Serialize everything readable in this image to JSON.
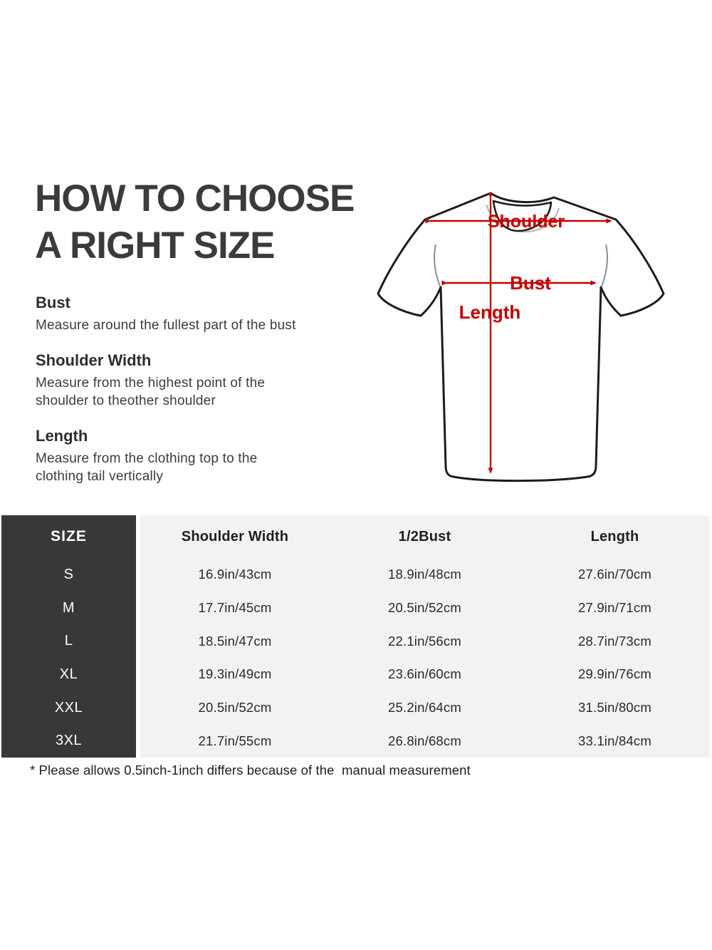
{
  "colors": {
    "accent_red": "#c40000",
    "table_dark": "#383838",
    "table_light": "#f2f2f2",
    "heading": "#3b3b3b"
  },
  "guide": {
    "title_line1": "HOW TO CHOOSE",
    "title_line2": "A RIGHT SIZE",
    "sections": [
      {
        "heading": "Bust",
        "body": "Measure around the fullest part of the bust"
      },
      {
        "heading": "Shoulder Width",
        "body": "Measure from the highest point of the\nshoulder to theother shoulder"
      },
      {
        "heading": "Length",
        "body": "Measure from the clothing top to the\nclothing tail vertically"
      }
    ]
  },
  "diagram": {
    "labels": {
      "shoulder": "Shoulder",
      "bust": "Bust",
      "length": "Length"
    }
  },
  "size_table": {
    "corner_header": "SIZE",
    "columns": [
      "Shoulder Width",
      "1/2Bust",
      "Length"
    ],
    "rows": [
      {
        "size": "S",
        "values": [
          "16.9in/43cm",
          "18.9in/48cm",
          "27.6in/70cm"
        ]
      },
      {
        "size": "M",
        "values": [
          "17.7in/45cm",
          "20.5in/52cm",
          "27.9in/71cm"
        ]
      },
      {
        "size": "L",
        "values": [
          "18.5in/47cm",
          "22.1in/56cm",
          "28.7in/73cm"
        ]
      },
      {
        "size": "XL",
        "values": [
          "19.3in/49cm",
          "23.6in/60cm",
          "29.9in/76cm"
        ]
      },
      {
        "size": "XXL",
        "values": [
          "20.5in/52cm",
          "25.2in/64cm",
          "31.5in/80cm"
        ]
      },
      {
        "size": "3XL",
        "values": [
          "21.7in/55cm",
          "26.8in/68cm",
          "33.1in/84cm"
        ]
      }
    ]
  },
  "footnote": "* Please allows 0.5inch-1inch differs because of the  manual measurement"
}
